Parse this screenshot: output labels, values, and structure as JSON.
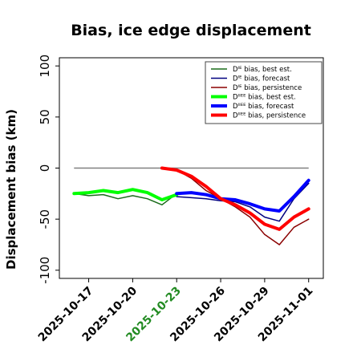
{
  "chart_data": {
    "type": "line",
    "title": "Bias, ice edge displacement",
    "ylabel": "Displacement bias (km)",
    "xlabel": "",
    "ylim": [
      -108,
      108
    ],
    "xlim": [
      "2025-10-15",
      "2025-11-02"
    ],
    "yticks": [
      -100,
      -50,
      0,
      50,
      100
    ],
    "xticks": [
      "2025-10-17",
      "2025-10-20",
      "2025-10-23",
      "2025-10-26",
      "2025-10-29",
      "2025-11-01"
    ],
    "highlight_tick": "2025-10-23",
    "highlight_color": "#228b22",
    "zero_line": {
      "x_start": "2025-10-16",
      "x_end": "2025-11-01",
      "y": 0,
      "color": "#808080"
    },
    "legend_position": "upper right",
    "series": [
      {
        "name": "Dᴵᴱ bias, best est.",
        "color": "#1a6b1a",
        "width": 1.5,
        "x": [
          "2025-10-16",
          "2025-10-17",
          "2025-10-18",
          "2025-10-19",
          "2025-10-20",
          "2025-10-21",
          "2025-10-22",
          "2025-10-23"
        ],
        "y": [
          -25,
          -27,
          -26,
          -30,
          -27,
          -30,
          -36,
          -25
        ]
      },
      {
        "name": "Dᴵᴱ bias, forecast",
        "color": "#000080",
        "width": 1.5,
        "x": [
          "2025-10-23",
          "2025-10-24",
          "2025-10-25",
          "2025-10-26",
          "2025-10-27",
          "2025-10-28",
          "2025-10-29",
          "2025-10-30",
          "2025-10-31",
          "2025-11-01"
        ],
        "y": [
          -28,
          -29,
          -30,
          -32,
          -33,
          -38,
          -48,
          -52,
          -30,
          -15
        ]
      },
      {
        "name": "Dᴵᴱ bias, persistence",
        "color": "#8b0000",
        "width": 1.5,
        "x": [
          "2025-10-22",
          "2025-10-23",
          "2025-10-24",
          "2025-10-25",
          "2025-10-26",
          "2025-10-27",
          "2025-10-28",
          "2025-10-29",
          "2025-10-30",
          "2025-10-31",
          "2025-11-01"
        ],
        "y": [
          0,
          -2,
          -10,
          -22,
          -30,
          -38,
          -48,
          -65,
          -75,
          -58,
          -50
        ]
      },
      {
        "name": "Dᴵᴵᴱᴱ bias, best est.",
        "color": "#00ff00",
        "width": 4,
        "x": [
          "2025-10-16",
          "2025-10-17",
          "2025-10-18",
          "2025-10-19",
          "2025-10-20",
          "2025-10-21",
          "2025-10-22",
          "2025-10-23"
        ],
        "y": [
          -25,
          -24,
          -22,
          -24,
          -21,
          -24,
          -31,
          -26
        ]
      },
      {
        "name": "Dᴵᴵᴱᴱ bias, forecast",
        "color": "#0000ff",
        "width": 4,
        "x": [
          "2025-10-23",
          "2025-10-24",
          "2025-10-25",
          "2025-10-26",
          "2025-10-27",
          "2025-10-28",
          "2025-10-29",
          "2025-10-30",
          "2025-10-31",
          "2025-11-01"
        ],
        "y": [
          -25,
          -24,
          -26,
          -30,
          -31,
          -35,
          -40,
          -42,
          -28,
          -12
        ]
      },
      {
        "name": "Dᴵᴵᴱᴱ bias, persistence",
        "color": "#ff0000",
        "width": 4,
        "x": [
          "2025-10-22",
          "2025-10-23",
          "2025-10-24",
          "2025-10-25",
          "2025-10-26",
          "2025-10-27",
          "2025-10-28",
          "2025-10-29",
          "2025-10-30",
          "2025-10-31",
          "2025-11-01"
        ],
        "y": [
          0,
          -2,
          -8,
          -18,
          -30,
          -36,
          -44,
          -55,
          -60,
          -48,
          -40
        ]
      }
    ]
  }
}
